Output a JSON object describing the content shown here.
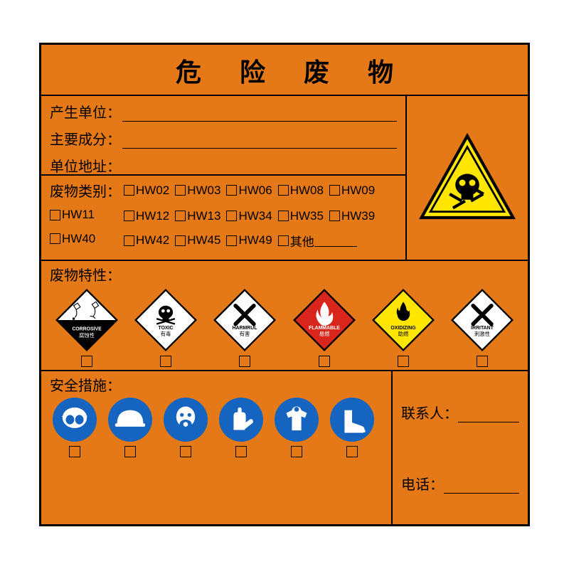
{
  "colors": {
    "background": "#e57817",
    "border": "#000000",
    "triangle_fill": "#ffe600",
    "triangle_border": "#000000",
    "triangle_inner": "#000000",
    "diamond_border": "#000000",
    "corrosive_bg": "#ffffff",
    "corrosive_bottom": "#000000",
    "toxic_bg": "#ffffff",
    "harmful_bg": "#ffffff",
    "flammable_bg": "#d8261c",
    "oxidizing_bg": "#ffe600",
    "irritant_bg": "#ffffff",
    "safety_circle": "#1565c0",
    "safety_icon": "#ffffff"
  },
  "title": "危 险 废 物",
  "info_labels": [
    "产生单位：",
    "主要成分：",
    "单位地址："
  ],
  "category_label": "废物类别：",
  "category_rows": [
    [
      "HW02",
      "HW03",
      "HW06",
      "HW08",
      "HW09"
    ],
    [
      "HW11",
      "HW12",
      "HW13",
      "HW34",
      "HW35",
      "HW39"
    ],
    [
      "HW40",
      "HW42",
      "HW45",
      "HW49"
    ]
  ],
  "category_row3_first_col": "HW40",
  "category_row3_rest": [
    "HW42",
    "HW45",
    "HW49"
  ],
  "other_label": "其他",
  "characteristics_label": "废物特性：",
  "diamonds": [
    {
      "name": "corrosive",
      "en": "CORROSIVE",
      "zh": "腐蚀性"
    },
    {
      "name": "toxic",
      "en": "TOXIC",
      "zh": "有毒"
    },
    {
      "name": "harmful",
      "en": "HARMRUL",
      "zh": "有害"
    },
    {
      "name": "flammable",
      "en": "FLAMMABLE",
      "zh": "易燃"
    },
    {
      "name": "oxidizing",
      "en": "OXIDIZING",
      "zh": "助燃"
    },
    {
      "name": "irritant",
      "en": "IRRITANT",
      "zh": "刺激性"
    }
  ],
  "safety_label": "安全措施：",
  "safety_icons": [
    "goggles",
    "helmet",
    "mask",
    "gloves",
    "suit",
    "boots"
  ],
  "contact": {
    "person_label": "联系人：",
    "phone_label": "电话："
  }
}
